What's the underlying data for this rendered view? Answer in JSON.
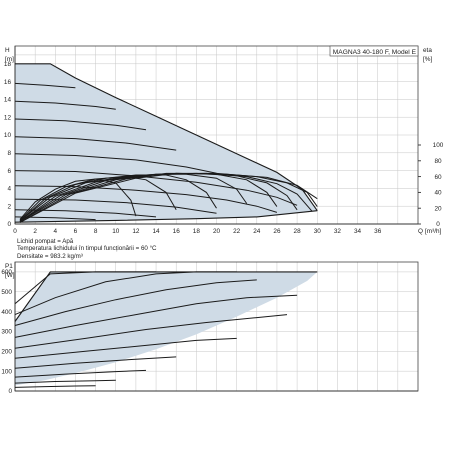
{
  "colors": {
    "region": "#cfdbe6",
    "curve": "#1b1b1b",
    "grid": "#c7c7c7"
  },
  "info": {
    "title": "MAGNA3 40-180 F, Model E",
    "lines": [
      "Lichid pompat = Apă",
      "Temperatura lichidului în timpul funcționării = 60 °C",
      "Densitate = 983.2 kg/m³"
    ]
  },
  "chart_data": [
    {
      "type": "line",
      "title": "MAGNA3 40-180 F, Model E",
      "ylabel": "H",
      "yunit": "[m]",
      "y2label": "eta",
      "y2unit": "[%]",
      "xlabel": "Q",
      "xunit": "[m³/h]",
      "xlim": [
        0,
        40
      ],
      "ylim": [
        0,
        20
      ],
      "y2lim": [
        0,
        100
      ],
      "xticks": [
        0,
        2,
        4,
        6,
        8,
        10,
        12,
        14,
        16,
        18,
        20,
        22,
        24,
        26,
        28,
        30,
        32,
        34,
        36
      ],
      "yticks": [
        0,
        2,
        4,
        6,
        8,
        10,
        12,
        14,
        16,
        18
      ],
      "y2ticks": [
        0,
        20,
        40,
        60,
        80,
        100
      ],
      "grid": true,
      "max_curve": [
        [
          0,
          18
        ],
        [
          3.5,
          18
        ],
        [
          6,
          16.4
        ],
        [
          10,
          14.2
        ],
        [
          14,
          12.1
        ],
        [
          18,
          10.0
        ],
        [
          22,
          7.9
        ],
        [
          26,
          5.8
        ],
        [
          28.5,
          3.9
        ],
        [
          30,
          1.5
        ]
      ],
      "min_curve": [
        [
          0,
          0.2
        ],
        [
          10,
          0.4
        ],
        [
          18,
          0.6
        ],
        [
          24,
          0.8
        ],
        [
          30,
          1.5
        ]
      ],
      "head_curves": [
        [
          [
            0,
            15.8
          ],
          [
            3,
            15.6
          ],
          [
            6,
            15.3
          ]
        ],
        [
          [
            0,
            13.8
          ],
          [
            4,
            13.6
          ],
          [
            8,
            13.2
          ],
          [
            10,
            12.9
          ]
        ],
        [
          [
            0,
            11.8
          ],
          [
            5,
            11.6
          ],
          [
            10,
            11.1
          ],
          [
            13,
            10.6
          ]
        ],
        [
          [
            0,
            9.8
          ],
          [
            6,
            9.6
          ],
          [
            11,
            9.1
          ],
          [
            16,
            8.3
          ]
        ],
        [
          [
            0,
            7.9
          ],
          [
            6,
            7.7
          ],
          [
            12,
            7.2
          ],
          [
            17,
            6.4
          ],
          [
            20,
            5.7
          ]
        ],
        [
          [
            0,
            6.0
          ],
          [
            6,
            5.9
          ],
          [
            12,
            5.4
          ],
          [
            18,
            4.7
          ],
          [
            23,
            3.8
          ],
          [
            26,
            3.0
          ],
          [
            28,
            2.1
          ]
        ],
        [
          [
            0,
            4.3
          ],
          [
            6,
            4.2
          ],
          [
            12,
            3.8
          ],
          [
            17,
            3.3
          ],
          [
            21,
            2.7
          ],
          [
            24,
            2.0
          ],
          [
            26,
            1.3
          ]
        ],
        [
          [
            0,
            2.8
          ],
          [
            6,
            2.7
          ],
          [
            11,
            2.4
          ],
          [
            16,
            1.9
          ],
          [
            20,
            1.2
          ]
        ],
        [
          [
            0,
            1.6
          ],
          [
            5,
            1.5
          ],
          [
            10,
            1.2
          ],
          [
            14,
            0.8
          ]
        ],
        [
          [
            0,
            0.8
          ],
          [
            4,
            0.7
          ],
          [
            8,
            0.5
          ]
        ]
      ],
      "eta_curves": [
        [
          [
            0.5,
            6
          ],
          [
            2,
            28
          ],
          [
            4,
            44
          ],
          [
            6,
            54
          ],
          [
            8,
            57
          ],
          [
            10,
            52
          ],
          [
            11.5,
            30
          ],
          [
            12,
            10
          ]
        ],
        [
          [
            0.5,
            5
          ],
          [
            2.5,
            30
          ],
          [
            5,
            47
          ],
          [
            8,
            57
          ],
          [
            11,
            60
          ],
          [
            13,
            56
          ],
          [
            15,
            40
          ],
          [
            16,
            18
          ]
        ],
        [
          [
            0.5,
            4
          ],
          [
            3,
            32
          ],
          [
            6,
            50
          ],
          [
            9,
            58
          ],
          [
            12,
            62
          ],
          [
            15,
            62
          ],
          [
            17,
            56
          ],
          [
            19,
            40
          ],
          [
            20,
            20
          ]
        ],
        [
          [
            0.5,
            4
          ],
          [
            3.5,
            34
          ],
          [
            7,
            52
          ],
          [
            11,
            60
          ],
          [
            14,
            63
          ],
          [
            17,
            63
          ],
          [
            20,
            58
          ],
          [
            22,
            44
          ],
          [
            23,
            26
          ]
        ],
        [
          [
            0.5,
            3
          ],
          [
            4,
            35
          ],
          [
            8,
            53
          ],
          [
            12,
            61
          ],
          [
            16,
            64
          ],
          [
            20,
            63
          ],
          [
            23,
            56
          ],
          [
            25,
            40
          ],
          [
            26,
            22
          ]
        ],
        [
          [
            0.5,
            3
          ],
          [
            4.5,
            36
          ],
          [
            9,
            55
          ],
          [
            13,
            62
          ],
          [
            18,
            64
          ],
          [
            22,
            61
          ],
          [
            25,
            52
          ],
          [
            27,
            36
          ],
          [
            28,
            18
          ]
        ],
        [
          [
            0.5,
            3
          ],
          [
            5,
            37
          ],
          [
            10,
            56
          ],
          [
            14,
            63
          ],
          [
            19,
            64
          ],
          [
            23,
            60
          ],
          [
            26,
            51
          ],
          [
            28,
            38
          ],
          [
            29.5,
            16
          ]
        ],
        [
          [
            0.5,
            2
          ],
          [
            5.5,
            38
          ],
          [
            11,
            57
          ],
          [
            15,
            64
          ],
          [
            20,
            64
          ],
          [
            24,
            60
          ],
          [
            27,
            52
          ],
          [
            29,
            40
          ],
          [
            30,
            22
          ]
        ],
        [
          [
            0.5,
            2
          ],
          [
            6,
            39
          ],
          [
            12,
            58
          ],
          [
            16,
            64
          ],
          [
            21,
            63
          ],
          [
            25,
            59
          ],
          [
            28,
            49
          ],
          [
            30,
            32
          ]
        ]
      ]
    },
    {
      "type": "line",
      "ylabel": "P1",
      "yunit": "[W]",
      "xlim": [
        0,
        40
      ],
      "ylim": [
        0,
        650
      ],
      "yticks": [
        0,
        100,
        200,
        300,
        400,
        500,
        600
      ],
      "grid": true,
      "max_curve": [
        [
          0,
          350
        ],
        [
          3.5,
          600
        ],
        [
          30,
          600
        ]
      ],
      "outer_curve": [
        [
          30,
          600
        ],
        [
          29,
          555
        ],
        [
          26,
          470
        ],
        [
          22,
          375
        ],
        [
          18,
          285
        ],
        [
          14,
          210
        ],
        [
          10,
          145
        ],
        [
          6,
          90
        ],
        [
          3,
          55
        ],
        [
          0,
          28
        ]
      ],
      "power_curves": [
        [
          [
            0,
            440
          ],
          [
            3.5,
            590
          ],
          [
            8,
            600
          ],
          [
            14,
            600
          ]
        ],
        [
          [
            0,
            385
          ],
          [
            4,
            470
          ],
          [
            9,
            550
          ],
          [
            14,
            590
          ],
          [
            18,
            600
          ],
          [
            22,
            600
          ]
        ],
        [
          [
            0,
            330
          ],
          [
            5,
            400
          ],
          [
            10,
            460
          ],
          [
            15,
            510
          ],
          [
            20,
            545
          ],
          [
            24,
            560
          ]
        ],
        [
          [
            0,
            270
          ],
          [
            6,
            330
          ],
          [
            12,
            385
          ],
          [
            18,
            440
          ],
          [
            23,
            470
          ],
          [
            27,
            480
          ],
          [
            28,
            482
          ]
        ],
        [
          [
            0,
            215
          ],
          [
            7,
            265
          ],
          [
            13,
            310
          ],
          [
            19,
            345
          ],
          [
            24,
            370
          ],
          [
            27,
            385
          ]
        ],
        [
          [
            0,
            165
          ],
          [
            7,
            200
          ],
          [
            13,
            230
          ],
          [
            18,
            255
          ],
          [
            22,
            265
          ]
        ],
        [
          [
            0,
            115
          ],
          [
            6,
            140
          ],
          [
            12,
            160
          ],
          [
            16,
            172
          ]
        ],
        [
          [
            0,
            70
          ],
          [
            5,
            85
          ],
          [
            10,
            98
          ],
          [
            13,
            104
          ]
        ],
        [
          [
            0,
            40
          ],
          [
            4,
            48
          ],
          [
            8,
            52
          ],
          [
            10,
            54
          ]
        ],
        [
          [
            0,
            18
          ],
          [
            3,
            22
          ],
          [
            6,
            25
          ],
          [
            8,
            26
          ]
        ]
      ]
    }
  ]
}
